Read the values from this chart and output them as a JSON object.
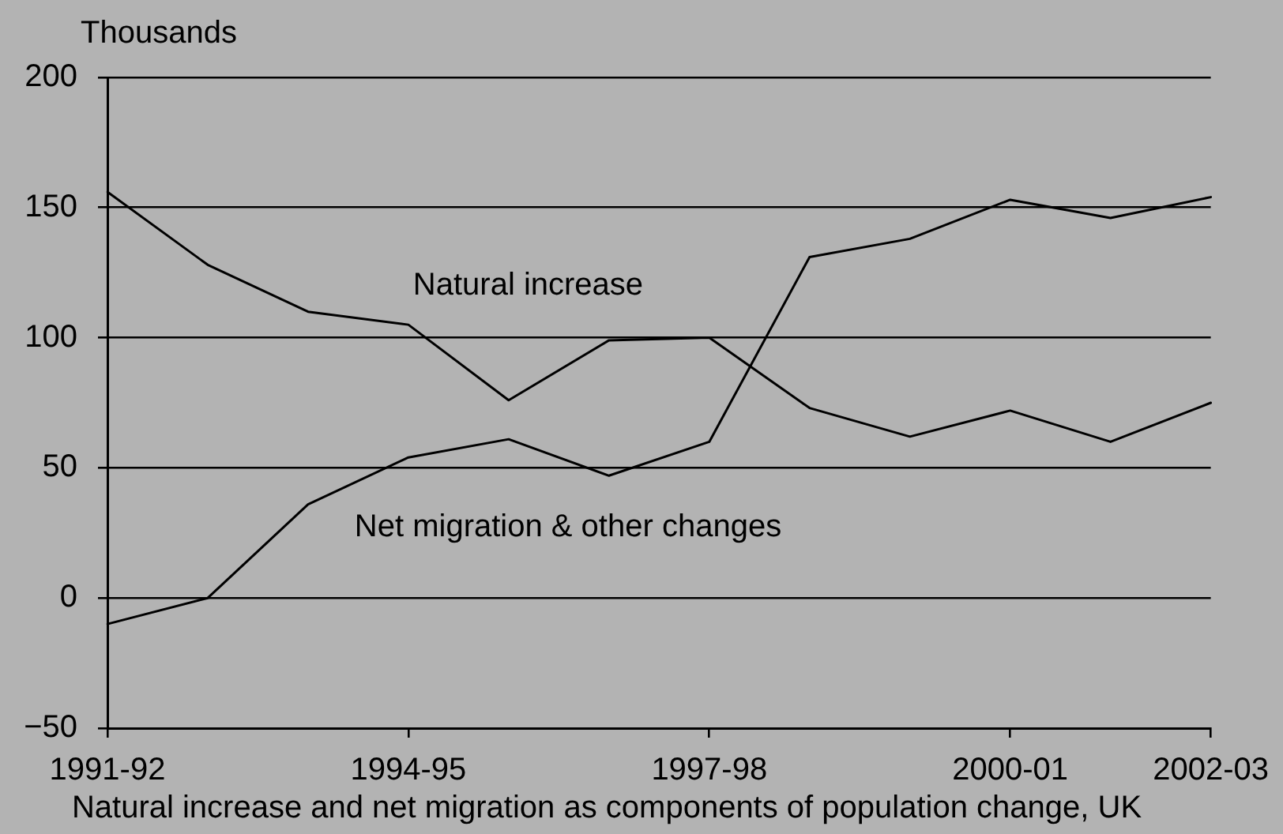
{
  "chart_data": {
    "type": "line",
    "title": "Natural increase and net migration as components of population change, UK",
    "ylabel": "Thousands",
    "categories": [
      "1991-92",
      null,
      null,
      "1994-95",
      null,
      null,
      "1997-98",
      null,
      null,
      "2000-01",
      null,
      "2002-03"
    ],
    "ylim": [
      -50,
      200
    ],
    "yticks": [
      {
        "value": -50,
        "label": "−50"
      },
      0,
      50,
      100,
      150,
      200
    ],
    "grid": "y",
    "marker": "none",
    "line_style": "solid",
    "series": [
      {
        "name": "Natural increase",
        "color": "#000000",
        "values": [
          156,
          128,
          110,
          105,
          76,
          99,
          100,
          73,
          62,
          72,
          60,
          75
        ]
      },
      {
        "name": "Net migration & other changes",
        "color": "#000000",
        "values": [
          -10,
          0,
          36,
          54,
          61,
          47,
          60,
          131,
          138,
          153,
          146,
          154
        ]
      }
    ]
  }
}
